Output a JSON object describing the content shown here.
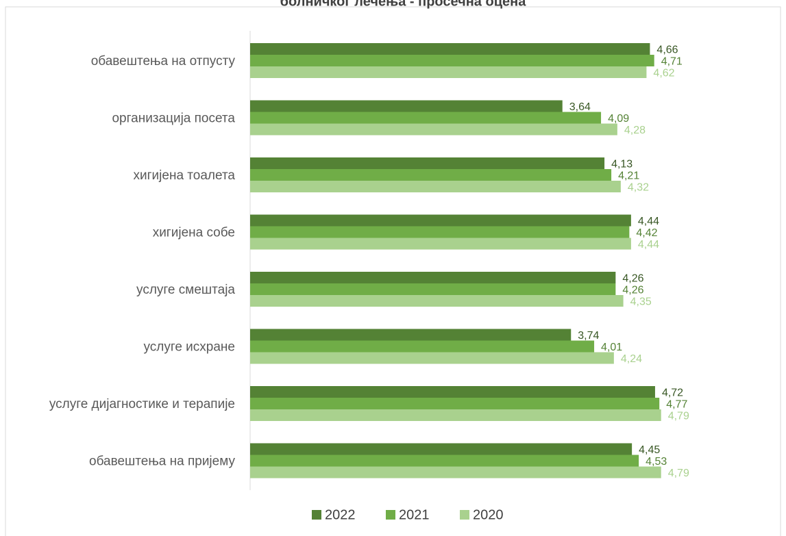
{
  "chart_data": {
    "type": "bar",
    "orientation": "horizontal",
    "title": "болничког лечења - просечна оцена",
    "categories": [
      "обавештења на отпусту",
      "организација посета",
      "хигијена тоалета",
      "хигијена собе",
      "услуге смештаја",
      "услуге исхране",
      "услуге дијагностике и терапије",
      "обавештења на пријему"
    ],
    "series": [
      {
        "name": "2022",
        "color": "#548235",
        "values": [
          4.66,
          3.64,
          4.13,
          4.44,
          4.26,
          3.74,
          4.72,
          4.45
        ],
        "value_labels": [
          "4,66",
          "3,64",
          "4,13",
          "4,44",
          "4,26",
          "3,74",
          "4,72",
          "4,45"
        ]
      },
      {
        "name": "2021",
        "color": "#70ad47",
        "values": [
          4.71,
          4.09,
          4.21,
          4.42,
          4.26,
          4.01,
          4.77,
          4.53
        ],
        "value_labels": [
          "4,71",
          "4,09",
          "4,21",
          "4,42",
          "4,26",
          "4,01",
          "4,77",
          "4,53"
        ]
      },
      {
        "name": "2020",
        "color": "#a9d18e",
        "values": [
          4.62,
          4.28,
          4.32,
          4.44,
          4.35,
          4.24,
          4.79,
          4.79
        ],
        "value_labels": [
          "4,62",
          "4,28",
          "4,32",
          "4,44",
          "4,35",
          "4,24",
          "4,79",
          "4,79"
        ]
      }
    ],
    "xlim": [
      0,
      5.5
    ],
    "legend": "bottom"
  }
}
